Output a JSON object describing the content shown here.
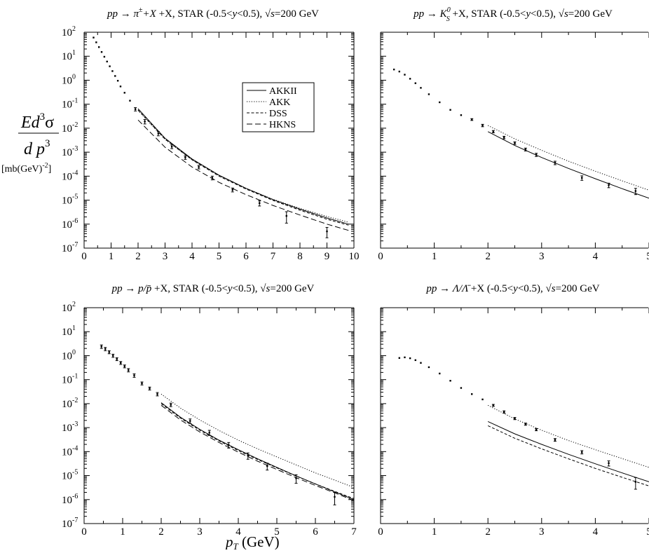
{
  "figure": {
    "ylabel_main": "Ed",
    "ylabel_sup": "3",
    "ylabel_sigma": "σ",
    "ylabel_den": "d p",
    "ylabel_den_sup": "3",
    "ylabel_units": "[mb(GeV)",
    "ylabel_units_sup": "-2",
    "ylabel_units_end": "]",
    "xlabel": "p",
    "xlabel_sub": "T",
    "xlabel_units": " (GeV)"
  },
  "legend": {
    "placement": "top-right of first panel",
    "entries": [
      {
        "label": "AKKII",
        "dash": "solid"
      },
      {
        "label": "AKK",
        "dash": "dotted"
      },
      {
        "label": "DSS",
        "dash": "dash-short"
      },
      {
        "label": "HKNS",
        "dash": "dash-long"
      }
    ]
  },
  "chart_data": [
    {
      "type": "scatter",
      "id": "pion",
      "title": "pp → π± +X, STAR (-0.5<y<0.5), √s=200 GeV",
      "title_parts": {
        "a": "pp → π",
        "sup": "±",
        "b": " +X, STAR (-0.5<",
        "y": "y",
        "c": "<0.5), √",
        "s": "s",
        "d": "=200 GeV"
      },
      "xlim": [
        0,
        10
      ],
      "xticks": [
        0,
        1,
        2,
        3,
        4,
        5,
        6,
        7,
        8,
        9,
        10
      ],
      "ylog": true,
      "ylim_exp": [
        -7,
        2
      ],
      "yticks_exp": [
        2,
        1,
        0,
        -1,
        -2,
        -3,
        -4,
        -5,
        -6,
        -7
      ],
      "show_ytick_labels": true,
      "points": {
        "x": [
          0.35,
          0.45,
          0.55,
          0.65,
          0.75,
          0.85,
          0.95,
          1.05,
          1.15,
          1.25,
          1.35,
          1.5,
          1.7,
          1.9,
          2.25,
          2.75,
          3.25,
          3.75,
          4.25,
          4.75,
          5.5,
          6.5,
          7.5,
          9.0
        ],
        "y": [
          60,
          38,
          24,
          15,
          9.5,
          6,
          3.8,
          2.4,
          1.5,
          0.95,
          0.55,
          0.3,
          0.14,
          0.062,
          0.019,
          0.006,
          0.0017,
          0.0006,
          0.00024,
          8.5e-05,
          2.7e-05,
          7.5e-06,
          2.2e-06,
          5e-07
        ],
        "err_lo": [
          0,
          0,
          0,
          0,
          0,
          0,
          0,
          0,
          0,
          0,
          0,
          0,
          0,
          0.01,
          0.004,
          0.0012,
          0.0003,
          0.0001,
          4e-05,
          1.5e-05,
          5e-06,
          1.8e-06,
          1.1e-06,
          2.3e-07
        ],
        "err_hi": [
          0,
          0,
          0,
          0,
          0,
          0,
          0,
          0,
          0,
          0,
          0,
          0,
          0,
          0.01,
          0.004,
          0.0012,
          0.0003,
          0.0001,
          4e-05,
          1.5e-05,
          5e-06,
          1.8e-06,
          1.1e-06,
          2.3e-07
        ]
      },
      "series": [
        {
          "name": "AKKII",
          "dash": "solid",
          "x": [
            2,
            3,
            4,
            5,
            6,
            7,
            8,
            9,
            9.8
          ],
          "y": [
            0.065,
            0.0038,
            0.00052,
            0.00011,
            3.1e-05,
            1.05e-05,
            4.2e-06,
            1.8e-06,
            1e-06
          ]
        },
        {
          "name": "AKK",
          "dash": "dotted",
          "x": [
            2,
            3,
            4,
            5,
            6,
            7,
            8,
            9,
            9.8
          ],
          "y": [
            0.055,
            0.0034,
            0.00048,
            0.000105,
            3.1e-05,
            1.08e-05,
            4.5e-06,
            2.1e-06,
            1.2e-06
          ]
        },
        {
          "name": "DSS",
          "dash": "dash-short",
          "x": [
            2,
            3,
            4,
            5,
            6,
            7,
            8,
            9,
            9.8
          ],
          "y": [
            0.058,
            0.0035,
            0.00048,
            0.0001,
            2.9e-05,
            9.8e-06,
            3.8e-06,
            1.6e-06,
            9e-07
          ]
        },
        {
          "name": "HKNS",
          "dash": "dash-long",
          "x": [
            2,
            3,
            4,
            5,
            6,
            7,
            8,
            9,
            9.8
          ],
          "y": [
            0.022,
            0.0016,
            0.00024,
            5.5e-05,
            1.7e-05,
            6e-06,
            2.4e-06,
            1e-06,
            5.5e-07
          ]
        }
      ]
    },
    {
      "type": "scatter",
      "id": "kaon",
      "title": "pp → K0S +X, STAR (-0.5<y<0.5), √s=200 GeV",
      "title_parts": {
        "a": "pp → K",
        "sub": "S",
        "sup": "0",
        "b": " +X, STAR (-0.5<",
        "y": "y",
        "c": "<0.5), √",
        "s": "s",
        "d": "=200 GeV"
      },
      "xlim": [
        0,
        5
      ],
      "xticks": [
        0,
        1,
        2,
        3,
        4,
        5
      ],
      "ylog": true,
      "ylim_exp": [
        -7,
        2
      ],
      "yticks_exp": [
        2,
        1,
        0,
        -1,
        -2,
        -3,
        -4,
        -5,
        -6,
        -7
      ],
      "show_ytick_labels": false,
      "points": {
        "x": [
          0.25,
          0.35,
          0.45,
          0.55,
          0.65,
          0.75,
          0.9,
          1.1,
          1.3,
          1.5,
          1.7,
          1.9,
          2.1,
          2.3,
          2.5,
          2.7,
          2.9,
          3.25,
          3.75,
          4.25,
          4.75
        ],
        "y": [
          2.8,
          2.3,
          1.7,
          1.15,
          0.75,
          0.48,
          0.26,
          0.12,
          0.058,
          0.035,
          0.023,
          0.013,
          0.0072,
          0.0041,
          0.0024,
          0.0013,
          0.00078,
          0.00036,
          8.5e-05,
          4.2e-05,
          2.4e-05
        ],
        "err_lo": [
          0,
          0,
          0,
          0,
          0,
          0,
          0,
          0,
          0,
          0,
          0.002,
          0.0015,
          0.0008,
          0.0005,
          0.0003,
          0.00018,
          0.00012,
          6e-05,
          1.8e-05,
          9e-06,
          7e-06
        ],
        "err_hi": [
          0,
          0,
          0,
          0,
          0,
          0,
          0,
          0,
          0,
          0,
          0.002,
          0.0015,
          0.0008,
          0.0005,
          0.0003,
          0.00018,
          0.00012,
          6e-05,
          1.8e-05,
          9e-06,
          7e-06
        ]
      },
      "series": [
        {
          "name": "AKKII",
          "dash": "solid",
          "x": [
            2,
            2.5,
            3,
            3.5,
            4,
            4.5,
            5
          ],
          "y": [
            0.0072,
            0.0019,
            0.0006,
            0.00021,
            7.8e-05,
            3e-05,
            1.2e-05
          ]
        },
        {
          "name": "AKK",
          "dash": "dotted",
          "x": [
            2,
            2.5,
            3,
            3.5,
            4,
            4.5,
            5
          ],
          "y": [
            0.013,
            0.0036,
            0.0012,
            0.00042,
            0.00016,
            6.4e-05,
            2.6e-05
          ]
        }
      ]
    },
    {
      "type": "scatter",
      "id": "proton",
      "title": "pp → p/p̄ +X, STAR (-0.5<y<0.5), √s=200 GeV",
      "title_parts": {
        "a": "pp → p/p̄",
        "b": " +X, STAR (-0.5<",
        "y": "y",
        "c": "<0.5), √",
        "s": "s",
        "d": "=200 GeV"
      },
      "xlim": [
        0,
        7
      ],
      "xticks": [
        0,
        1,
        2,
        3,
        4,
        5,
        6,
        7
      ],
      "ylog": true,
      "ylim_exp": [
        -7,
        2
      ],
      "yticks_exp": [
        2,
        1,
        0,
        -1,
        -2,
        -3,
        -4,
        -5,
        -6,
        -7
      ],
      "show_ytick_labels": true,
      "points": {
        "x": [
          0.45,
          0.55,
          0.65,
          0.75,
          0.85,
          0.95,
          1.05,
          1.15,
          1.3,
          1.5,
          1.7,
          1.9,
          2.25,
          2.75,
          3.25,
          3.75,
          4.25,
          4.75,
          5.5,
          6.5
        ],
        "y": [
          2.4,
          1.9,
          1.4,
          1.0,
          0.72,
          0.5,
          0.36,
          0.25,
          0.15,
          0.07,
          0.043,
          0.025,
          0.009,
          0.0019,
          0.00062,
          0.00019,
          6.8e-05,
          2.5e-05,
          7.8e-06,
          1.3e-06
        ],
        "err_lo": [
          0.4,
          0.3,
          0.2,
          0.15,
          0.1,
          0.07,
          0.05,
          0.04,
          0.025,
          0.01,
          0.006,
          0.004,
          0.0015,
          0.0004,
          0.00015,
          5e-05,
          2e-05,
          8e-06,
          3e-06,
          7e-07
        ],
        "err_hi": [
          0.4,
          0.3,
          0.2,
          0.15,
          0.1,
          0.07,
          0.05,
          0.04,
          0.025,
          0.01,
          0.006,
          0.004,
          0.0015,
          0.0004,
          0.00015,
          5e-05,
          2e-05,
          8e-06,
          3e-06,
          7e-07
        ]
      },
      "series": [
        {
          "name": "AKKII",
          "dash": "solid",
          "x": [
            2,
            2.5,
            3,
            3.5,
            4,
            4.5,
            5,
            5.5,
            6,
            6.5,
            7
          ],
          "y": [
            0.011,
            0.0027,
            0.00085,
            0.0003,
            0.00012,
            5e-05,
            2.2e-05,
            9.8e-06,
            4.5e-06,
            2.1e-06,
            1e-06
          ]
        },
        {
          "name": "AKK",
          "dash": "dotted",
          "x": [
            2,
            2.5,
            3,
            3.5,
            4,
            4.5,
            5,
            5.5,
            6,
            6.5,
            7
          ],
          "y": [
            0.025,
            0.0065,
            0.0021,
            0.00076,
            0.0003,
            0.00013,
            6e-05,
            2.8e-05,
            1.3e-05,
            6.5e-06,
            3.2e-06
          ]
        },
        {
          "name": "DSS",
          "dash": "dash-short",
          "x": [
            2,
            2.5,
            3,
            3.5,
            4,
            4.5,
            5,
            5.5,
            6,
            6.5,
            7
          ],
          "y": [
            0.01,
            0.0025,
            0.00078,
            0.00028,
            0.00011,
            4.7e-05,
            2.1e-05,
            9.6e-06,
            4.5e-06,
            2.2e-06,
            1.1e-06
          ]
        },
        {
          "name": "HKNS",
          "dash": "dash-long",
          "x": [
            2,
            2.5,
            3,
            3.5,
            4,
            4.5,
            5,
            5.5,
            6,
            6.5,
            7
          ],
          "y": [
            0.0085,
            0.0021,
            0.00066,
            0.00024,
            9.5e-05,
            4e-05,
            1.8e-05,
            8.2e-06,
            3.9e-06,
            1.9e-06,
            9e-07
          ]
        }
      ]
    },
    {
      "type": "scatter",
      "id": "lambda",
      "title": "pp → Λ/Λ̄ +X (-0.5<y<0.5), √s=200 GeV",
      "title_parts": {
        "a": "pp → Λ/Λ̄",
        "b": " +X (-0.5<",
        "y": "y",
        "c": "<0.5), √",
        "s": "s",
        "d": "=200 GeV"
      },
      "xlim": [
        0,
        5
      ],
      "xticks": [
        0,
        1,
        2,
        3,
        4,
        5
      ],
      "ylog": true,
      "ylim_exp": [
        -7,
        2
      ],
      "yticks_exp": [
        2,
        1,
        0,
        -1,
        -2,
        -3,
        -4,
        -5,
        -6,
        -7
      ],
      "show_ytick_labels": false,
      "points": {
        "x": [
          0.35,
          0.45,
          0.55,
          0.65,
          0.75,
          0.9,
          1.1,
          1.3,
          1.5,
          1.7,
          1.9,
          2.1,
          2.3,
          2.5,
          2.7,
          2.9,
          3.25,
          3.75,
          4.25,
          4.75
        ],
        "y": [
          0.8,
          0.85,
          0.78,
          0.65,
          0.5,
          0.33,
          0.18,
          0.09,
          0.045,
          0.025,
          0.015,
          0.0085,
          0.0045,
          0.0024,
          0.0014,
          0.00083,
          0.00031,
          9.5e-05,
          3.3e-05,
          5.5e-06
        ],
        "err_lo": [
          0,
          0,
          0,
          0,
          0,
          0,
          0,
          0,
          0,
          0,
          0,
          0.0008,
          0.0005,
          0.00025,
          0.00015,
          9e-05,
          4e-05,
          1.5e-05,
          8e-06,
          2.8e-06
        ],
        "err_hi": [
          0,
          0,
          0,
          0,
          0,
          0,
          0,
          0,
          0,
          0,
          0,
          0.0008,
          0.0005,
          0.00025,
          0.00015,
          9e-05,
          4e-05,
          1.5e-05,
          8e-06,
          2.8e-06
        ]
      },
      "series": [
        {
          "name": "AKKII",
          "dash": "solid",
          "x": [
            2,
            2.5,
            3,
            3.5,
            4,
            4.5,
            5
          ],
          "y": [
            0.0018,
            0.00055,
            0.0002,
            7.7e-05,
            3.1e-05,
            1.3e-05,
            5.5e-06
          ]
        },
        {
          "name": "AKK",
          "dash": "dotted",
          "x": [
            2,
            2.5,
            3,
            3.5,
            4,
            4.5,
            5
          ],
          "y": [
            0.0085,
            0.0023,
            0.00078,
            0.00029,
            0.00012,
            5.1e-05,
            2.2e-05
          ]
        },
        {
          "name": "DSS",
          "dash": "dash-short",
          "x": [
            2,
            2.5,
            3,
            3.5,
            4,
            4.5,
            5
          ],
          "y": [
            0.0012,
            0.00036,
            0.00013,
            5e-05,
            2e-05,
            8.5e-06,
            3.7e-06
          ]
        }
      ]
    }
  ]
}
